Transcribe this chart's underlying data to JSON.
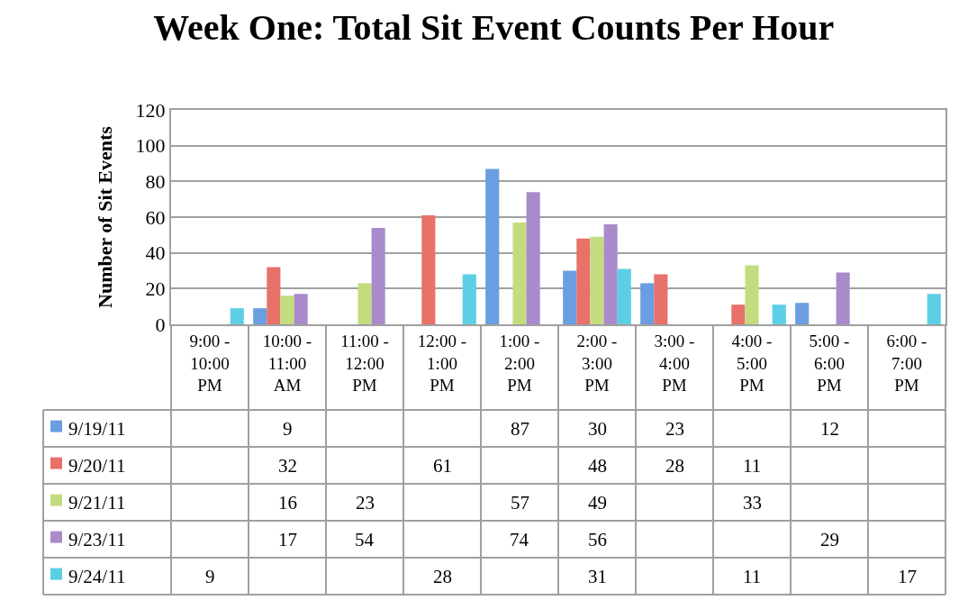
{
  "chart_data": {
    "type": "bar",
    "title": "Week One: Total Sit Event Counts Per Hour",
    "ylabel": "Number of Sit Events",
    "categories": [
      "9:00 - 10:00 PM",
      "10:00 - 11:00 AM",
      "11:00 - 12:00 PM",
      "12:00 - 1:00 PM",
      "1:00 - 2:00 PM",
      "2:00 - 3:00 PM",
      "3:00 - 4:00 PM",
      "4:00 - 5:00 PM",
      "5:00 - 6:00 PM",
      "6:00 - 7:00 PM"
    ],
    "series": [
      {
        "name": "9/19/11",
        "color": "#6a9ee0",
        "values": [
          null,
          9,
          null,
          null,
          87,
          30,
          23,
          null,
          12,
          null
        ]
      },
      {
        "name": "9/20/11",
        "color": "#e8716a",
        "values": [
          null,
          32,
          null,
          61,
          null,
          48,
          28,
          11,
          null,
          null
        ]
      },
      {
        "name": "9/21/11",
        "color": "#c3dd7e",
        "values": [
          null,
          16,
          23,
          null,
          57,
          49,
          null,
          33,
          null,
          null
        ]
      },
      {
        "name": "9/23/11",
        "color": "#a98bcb",
        "values": [
          null,
          17,
          54,
          null,
          74,
          56,
          null,
          null,
          29,
          null
        ]
      },
      {
        "name": "9/24/11",
        "color": "#5ccfe6",
        "values": [
          9,
          null,
          null,
          28,
          null,
          31,
          null,
          11,
          null,
          17
        ]
      }
    ],
    "ylim": [
      0,
      120
    ],
    "yticks": [
      0,
      20,
      40,
      60,
      80,
      100,
      120
    ],
    "grid": "y",
    "legend": "bottom",
    "data_labels": true
  }
}
